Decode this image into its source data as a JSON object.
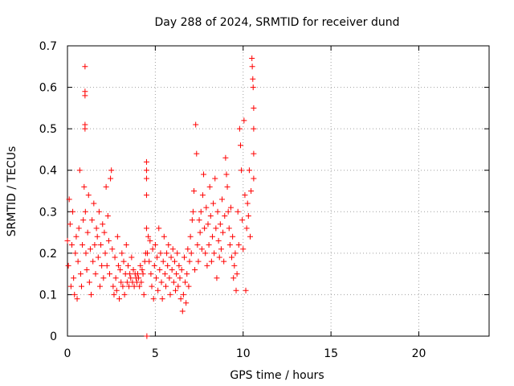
{
  "chart_data": {
    "type": "scatter",
    "title": "Day 288 of 2024, SRMTID for receiver dund",
    "xlabel": "GPS time / hours",
    "ylabel": "SRMTID / TECUs",
    "xlim": [
      0,
      24
    ],
    "ylim": [
      0,
      0.7
    ],
    "xticks": [
      0,
      5,
      10,
      15,
      20
    ],
    "yticks": [
      0,
      0.1,
      0.2,
      0.3,
      0.4,
      0.5,
      0.6,
      0.7
    ],
    "xtick_labels": [
      "0",
      "5",
      "10",
      "15",
      "20"
    ],
    "ytick_labels": [
      "0",
      "0.1",
      "0.2",
      "0.3",
      "0.4",
      "0.5",
      "0.6",
      "0.7"
    ],
    "grid": true,
    "marker": "+",
    "color": "#ff0000",
    "series": [
      {
        "name": "dund",
        "points": [
          [
            0.0,
            0.23
          ],
          [
            0.05,
            0.17
          ],
          [
            0.1,
            0.33
          ],
          [
            0.15,
            0.27
          ],
          [
            0.2,
            0.12
          ],
          [
            0.25,
            0.22
          ],
          [
            0.3,
            0.3
          ],
          [
            0.35,
            0.14
          ],
          [
            0.4,
            0.1
          ],
          [
            0.45,
            0.2
          ],
          [
            0.5,
            0.24
          ],
          [
            0.55,
            0.09
          ],
          [
            0.6,
            0.18
          ],
          [
            0.65,
            0.26
          ],
          [
            0.7,
            0.4
          ],
          [
            0.75,
            0.15
          ],
          [
            0.8,
            0.12
          ],
          [
            0.85,
            0.22
          ],
          [
            0.9,
            0.28
          ],
          [
            0.95,
            0.36
          ],
          [
            1.0,
            0.65
          ],
          [
            1.0,
            0.59
          ],
          [
            1.0,
            0.58
          ],
          [
            1.0,
            0.51
          ],
          [
            1.0,
            0.5
          ],
          [
            1.02,
            0.3
          ],
          [
            1.05,
            0.2
          ],
          [
            1.1,
            0.16
          ],
          [
            1.15,
            0.25
          ],
          [
            1.2,
            0.34
          ],
          [
            1.25,
            0.13
          ],
          [
            1.3,
            0.21
          ],
          [
            1.35,
            0.1
          ],
          [
            1.4,
            0.28
          ],
          [
            1.45,
            0.18
          ],
          [
            1.5,
            0.32
          ],
          [
            1.55,
            0.22
          ],
          [
            1.6,
            0.15
          ],
          [
            1.65,
            0.26
          ],
          [
            1.7,
            0.24
          ],
          [
            1.75,
            0.19
          ],
          [
            1.8,
            0.3
          ],
          [
            1.85,
            0.12
          ],
          [
            1.9,
            0.22
          ],
          [
            1.95,
            0.17
          ],
          [
            2.0,
            0.27
          ],
          [
            2.05,
            0.14
          ],
          [
            2.1,
            0.25
          ],
          [
            2.15,
            0.2
          ],
          [
            2.2,
            0.36
          ],
          [
            2.25,
            0.17
          ],
          [
            2.3,
            0.29
          ],
          [
            2.35,
            0.23
          ],
          [
            2.4,
            0.15
          ],
          [
            2.45,
            0.38
          ],
          [
            2.5,
            0.4
          ],
          [
            2.55,
            0.21
          ],
          [
            2.6,
            0.12
          ],
          [
            2.65,
            0.1
          ],
          [
            2.7,
            0.19
          ],
          [
            2.75,
            0.14
          ],
          [
            2.8,
            0.11
          ],
          [
            2.85,
            0.24
          ],
          [
            2.9,
            0.17
          ],
          [
            2.95,
            0.09
          ],
          [
            3.0,
            0.16
          ],
          [
            3.05,
            0.13
          ],
          [
            3.1,
            0.2
          ],
          [
            3.15,
            0.12
          ],
          [
            3.2,
            0.18
          ],
          [
            3.25,
            0.1
          ],
          [
            3.3,
            0.15
          ],
          [
            3.35,
            0.22
          ],
          [
            3.4,
            0.13
          ],
          [
            3.45,
            0.17
          ],
          [
            3.5,
            0.12
          ],
          [
            3.55,
            0.15
          ],
          [
            3.6,
            0.14
          ],
          [
            3.65,
            0.19
          ],
          [
            3.7,
            0.13
          ],
          [
            3.75,
            0.16
          ],
          [
            3.8,
            0.12
          ],
          [
            3.85,
            0.15
          ],
          [
            3.9,
            0.14
          ],
          [
            3.95,
            0.13
          ],
          [
            4.0,
            0.15
          ],
          [
            4.05,
            0.14
          ],
          [
            4.1,
            0.12
          ],
          [
            4.15,
            0.17
          ],
          [
            4.2,
            0.13
          ],
          [
            4.25,
            0.16
          ],
          [
            4.3,
            0.15
          ],
          [
            4.35,
            0.1
          ],
          [
            4.4,
            0.18
          ],
          [
            4.45,
            0.2
          ],
          [
            4.5,
            0.42
          ],
          [
            4.5,
            0.4
          ],
          [
            4.5,
            0.38
          ],
          [
            4.5,
            0.34
          ],
          [
            4.5,
            0.26
          ],
          [
            4.52,
            0.0
          ],
          [
            4.55,
            0.2
          ],
          [
            4.6,
            0.24
          ],
          [
            4.65,
            0.18
          ],
          [
            4.7,
            0.23
          ],
          [
            4.75,
            0.15
          ],
          [
            4.8,
            0.12
          ],
          [
            4.85,
            0.21
          ],
          [
            4.9,
            0.09
          ],
          [
            4.95,
            0.17
          ],
          [
            5.0,
            0.22
          ],
          [
            5.05,
            0.14
          ],
          [
            5.1,
            0.19
          ],
          [
            5.15,
            0.11
          ],
          [
            5.2,
            0.26
          ],
          [
            5.25,
            0.16
          ],
          [
            5.3,
            0.2
          ],
          [
            5.35,
            0.13
          ],
          [
            5.4,
            0.09
          ],
          [
            5.45,
            0.18
          ],
          [
            5.5,
            0.24
          ],
          [
            5.55,
            0.15
          ],
          [
            5.6,
            0.12
          ],
          [
            5.65,
            0.2
          ],
          [
            5.7,
            0.17
          ],
          [
            5.75,
            0.22
          ],
          [
            5.8,
            0.14
          ],
          [
            5.85,
            0.1
          ],
          [
            5.9,
            0.19
          ],
          [
            5.95,
            0.16
          ],
          [
            6.0,
            0.21
          ],
          [
            6.05,
            0.13
          ],
          [
            6.1,
            0.18
          ],
          [
            6.15,
            0.11
          ],
          [
            6.2,
            0.15
          ],
          [
            6.25,
            0.2
          ],
          [
            6.3,
            0.12
          ],
          [
            6.35,
            0.17
          ],
          [
            6.4,
            0.14
          ],
          [
            6.45,
            0.09
          ],
          [
            6.5,
            0.16
          ],
          [
            6.55,
            0.06
          ],
          [
            6.6,
            0.1
          ],
          [
            6.65,
            0.19
          ],
          [
            6.7,
            0.13
          ],
          [
            6.75,
            0.08
          ],
          [
            6.8,
            0.15
          ],
          [
            6.85,
            0.21
          ],
          [
            6.9,
            0.12
          ],
          [
            6.95,
            0.18
          ],
          [
            7.0,
            0.24
          ],
          [
            7.05,
            0.2
          ],
          [
            7.1,
            0.28
          ],
          [
            7.15,
            0.3
          ],
          [
            7.2,
            0.35
          ],
          [
            7.25,
            0.16
          ],
          [
            7.3,
            0.51
          ],
          [
            7.35,
            0.44
          ],
          [
            7.4,
            0.22
          ],
          [
            7.45,
            0.18
          ],
          [
            7.5,
            0.28
          ],
          [
            7.55,
            0.25
          ],
          [
            7.6,
            0.3
          ],
          [
            7.65,
            0.21
          ],
          [
            7.7,
            0.34
          ],
          [
            7.75,
            0.39
          ],
          [
            7.8,
            0.26
          ],
          [
            7.85,
            0.2
          ],
          [
            7.9,
            0.31
          ],
          [
            7.95,
            0.17
          ],
          [
            8.0,
            0.27
          ],
          [
            8.05,
            0.22
          ],
          [
            8.1,
            0.36
          ],
          [
            8.15,
            0.29
          ],
          [
            8.2,
            0.18
          ],
          [
            8.25,
            0.24
          ],
          [
            8.3,
            0.32
          ],
          [
            8.35,
            0.2
          ],
          [
            8.4,
            0.38
          ],
          [
            8.45,
            0.26
          ],
          [
            8.5,
            0.14
          ],
          [
            8.55,
            0.3
          ],
          [
            8.6,
            0.23
          ],
          [
            8.65,
            0.19
          ],
          [
            8.7,
            0.27
          ],
          [
            8.75,
            0.21
          ],
          [
            8.8,
            0.33
          ],
          [
            8.85,
            0.25
          ],
          [
            8.9,
            0.18
          ],
          [
            8.95,
            0.29
          ],
          [
            9.0,
            0.43
          ],
          [
            9.05,
            0.39
          ],
          [
            9.1,
            0.36
          ],
          [
            9.15,
            0.3
          ],
          [
            9.2,
            0.26
          ],
          [
            9.25,
            0.22
          ],
          [
            9.3,
            0.31
          ],
          [
            9.35,
            0.19
          ],
          [
            9.4,
            0.24
          ],
          [
            9.45,
            0.14
          ],
          [
            9.5,
            0.17
          ],
          [
            9.55,
            0.2
          ],
          [
            9.6,
            0.11
          ],
          [
            9.65,
            0.15
          ],
          [
            9.7,
            0.3
          ],
          [
            9.75,
            0.22
          ],
          [
            9.8,
            0.5
          ],
          [
            9.85,
            0.46
          ],
          [
            9.9,
            0.4
          ],
          [
            9.95,
            0.28
          ],
          [
            10.0,
            0.21
          ],
          [
            10.05,
            0.52
          ],
          [
            10.1,
            0.34
          ],
          [
            10.15,
            0.11
          ],
          [
            10.2,
            0.26
          ],
          [
            10.25,
            0.32
          ],
          [
            10.3,
            0.29
          ],
          [
            10.35,
            0.4
          ],
          [
            10.4,
            0.24
          ],
          [
            10.45,
            0.35
          ],
          [
            10.5,
            0.67
          ],
          [
            10.52,
            0.65
          ],
          [
            10.55,
            0.62
          ],
          [
            10.57,
            0.6
          ],
          [
            10.6,
            0.55
          ],
          [
            10.6,
            0.5
          ],
          [
            10.6,
            0.44
          ],
          [
            10.6,
            0.38
          ]
        ]
      }
    ]
  }
}
